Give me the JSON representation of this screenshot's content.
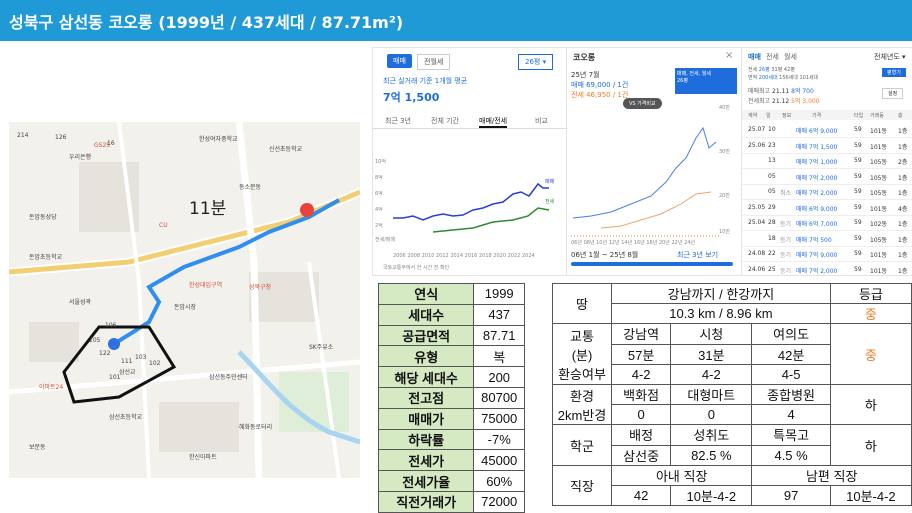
{
  "header": {
    "title": "성북구 삼선동 코오롱 (1999년 / 437세대 / 87.71m²)"
  },
  "map": {
    "travel_time": "11분",
    "labels": [
      "우리은행",
      "돈암동성당",
      "돈암초등학교",
      "한성대입구역",
      "삼선초등학교",
      "성북구청",
      "SK주유소",
      "신선초등학교",
      "삼선동주민센터",
      "보문동",
      "이마트24",
      "CU",
      "GS25",
      "한성여자중학교",
      "돈암시장",
      "삼선교",
      "동소문동",
      "한신아파트",
      "서울성곽",
      "혜화동로터리"
    ],
    "road_labels": [
      "214",
      "126",
      "16",
      "111",
      "122",
      "103",
      "102",
      "101",
      "105",
      "106"
    ]
  },
  "price_panel": {
    "tabs": [
      "매매",
      "전월세"
    ],
    "period": "26평",
    "avg_label": "최근 실거래 기준 1개월 평균",
    "avg_price": "7억 1,500",
    "sub_tabs": [
      "최근 3년",
      "전체 기간",
      "매매/전세",
      "비교"
    ],
    "y_ticks": [
      "10억",
      "8억",
      "6억",
      "4억",
      "2억"
    ],
    "x_ticks": [
      "2006",
      "2008",
      "2010",
      "2012",
      "2014",
      "2016",
      "2018",
      "2020",
      "2022",
      "2024"
    ],
    "legend": [
      "매매",
      "전세"
    ],
    "volume_label": "전세/매매",
    "source": "국토교통부에서 한 시간 전 확인"
  },
  "chart_panel": {
    "name": "코오롱",
    "date": "25년 7월",
    "sale": "매매 69,000 / 1건",
    "jeonse": "전세 46,950 / 1건",
    "filter_label": "매매, 전세, 월세",
    "filter_size": "26평",
    "compare_button": "VS 가격비교",
    "y_ticks": [
      "40만",
      "30만",
      "20만",
      "10만"
    ],
    "x_ticks": [
      "06년",
      "08년",
      "10년",
      "12년",
      "14년",
      "16년",
      "18년",
      "20년",
      "22년",
      "24년"
    ],
    "range_label": "06년 1월 ~ 25년 8월",
    "recent_link": "최근 3년 보기"
  },
  "trade_panel": {
    "tabs": [
      "매매",
      "전세",
      "월세"
    ],
    "sort": "전체년도",
    "summary_rows": [
      {
        "label": "전세",
        "c1": "26평",
        "c2": "31평",
        "c3": "42평"
      },
      {
        "label": "면적",
        "c1": "200세대",
        "c2": "156세대",
        "c3": "101세대"
      }
    ],
    "buttons": [
      "평형기",
      "설정"
    ],
    "max_sale_date": "21.11",
    "max_sale_price": "8억 700",
    "max_jeonse_date": "21.12",
    "max_jeonse_price": "5억 3,000",
    "col_headers": [
      "계약",
      "일",
      "정보",
      "가격",
      "타입",
      "거래동",
      "층"
    ],
    "rows": [
      {
        "m": "25.07",
        "d": "10",
        "info": "",
        "price": "매매 6억 9,000",
        "type": "59",
        "dong": "101동",
        "floor": "1층"
      },
      {
        "m": "25.06",
        "d": "23",
        "info": "",
        "price": "매매 7억 1,500",
        "type": "59",
        "dong": "101동",
        "floor": "1층"
      },
      {
        "m": "",
        "d": "13",
        "info": "",
        "price": "매매 7억 1,000",
        "type": "59",
        "dong": "105동",
        "floor": "2층"
      },
      {
        "m": "",
        "d": "05",
        "info": "",
        "price": "매매 7억 2,000",
        "type": "59",
        "dong": "105동",
        "floor": "1층"
      },
      {
        "m": "",
        "d": "05",
        "info": "취소",
        "price": "매매 7억 2,000",
        "type": "59",
        "dong": "105동",
        "floor": "1층"
      },
      {
        "m": "25.05",
        "d": "29",
        "info": "",
        "price": "매매 6억 9,000",
        "type": "59",
        "dong": "101동",
        "floor": "4층"
      },
      {
        "m": "25.04",
        "d": "28",
        "info": "등기",
        "price": "매매 6억 7,000",
        "type": "59",
        "dong": "102동",
        "floor": "1층"
      },
      {
        "m": "",
        "d": "18",
        "info": "등기",
        "price": "매매 7억 500",
        "type": "59",
        "dong": "105동",
        "floor": "1층"
      },
      {
        "m": "24.08",
        "d": "22",
        "info": "등기",
        "price": "매매 7억 9,000",
        "type": "59",
        "dong": "101동",
        "floor": "1층"
      },
      {
        "m": "24.06",
        "d": "25",
        "info": "등기",
        "price": "매매 7억 2,000",
        "type": "59",
        "dong": "101동",
        "floor": "1층"
      }
    ]
  },
  "info_table": {
    "rows": [
      {
        "label": "연식",
        "value": "1999"
      },
      {
        "label": "세대수",
        "value": "437"
      },
      {
        "label": "공급면적",
        "value": "87.71"
      },
      {
        "label": "유형",
        "value": "복"
      },
      {
        "label": "해당 세대수",
        "value": "200"
      },
      {
        "label": "전고점",
        "value": "80700"
      },
      {
        "label": "매매가",
        "value": "75000"
      },
      {
        "label": "하락률",
        "value": "-7%"
      },
      {
        "label": "전세가",
        "value": "45000"
      },
      {
        "label": "전세가율",
        "value": "60%"
      },
      {
        "label": "직전거래가",
        "value": "72000"
      }
    ]
  },
  "location_table": {
    "land_label": "땅",
    "land_header": "강남까지 / 한강까지",
    "grade_label": "등급",
    "land_value": "10.3 km / 8.96 km",
    "land_grade": "중",
    "traffic_label_1": "교통",
    "traffic_label_2": "(분)",
    "traffic_label_3": "환승여부",
    "traffic_cols": [
      "강남역",
      "시청",
      "여의도"
    ],
    "traffic_mins": [
      "57분",
      "31분",
      "42분"
    ],
    "traffic_transfer": [
      "4-2",
      "4-2",
      "4-5"
    ],
    "traffic_grade": "중",
    "env_label_1": "환경",
    "env_label_2": "2km반경",
    "env_cols": [
      "백화점",
      "대형마트",
      "종합병원"
    ],
    "env_vals": [
      "0",
      "0",
      "4"
    ],
    "env_grade": "하",
    "school_label": "학군",
    "school_cols": [
      "배정",
      "성취도",
      "특목고"
    ],
    "school_vals": [
      "삼선중",
      "82.5 %",
      "4.5 %"
    ],
    "school_grade": "하",
    "work_label": "직장",
    "wife_header": "아내 직장",
    "husband_header": "남편 직장",
    "work_vals": [
      "42",
      "10분-4-2",
      "97",
      "10분-4-2"
    ]
  },
  "colors": {
    "header": "#1f9ad6",
    "label_bg": "#d5e9c2",
    "accent": "#f07b22",
    "sale_line": "#2b3fd6",
    "jeonse_line": "#2e8b2e"
  }
}
